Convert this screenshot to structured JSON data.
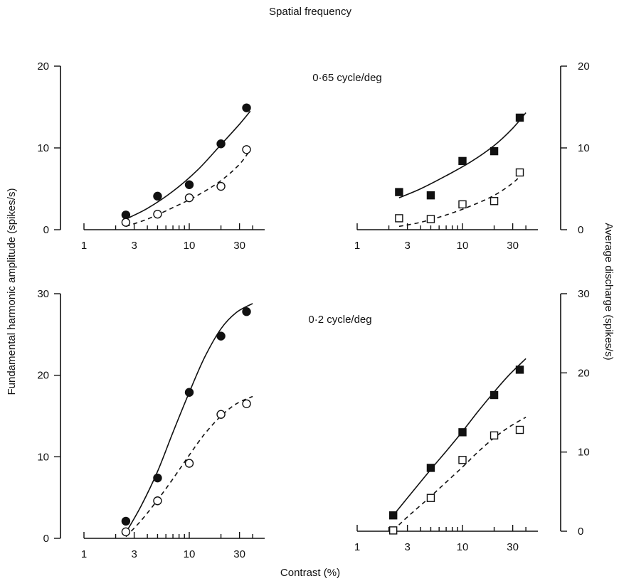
{
  "figure": {
    "top_title": "Spatial frequency",
    "y_left_label": "Fundamental harmonic amplitude (spikes/s)",
    "y_right_label": "Average discharge (spikes/s)",
    "x_label": "Contrast (%)"
  },
  "chart_data": [
    {
      "type": "scatter",
      "panel": "top-left",
      "title": "0·65 cycle/deg",
      "xlabel": "Contrast (%)",
      "ylabel": "Fundamental harmonic amplitude (spikes/s)",
      "xscale": "log",
      "xlim": [
        1,
        45
      ],
      "ylim": [
        0,
        20
      ],
      "x_ticks": [
        1,
        3,
        10,
        30
      ],
      "y_ticks": [
        0,
        10,
        20
      ],
      "series": [
        {
          "marker": "filled-circle",
          "line": "solid",
          "x": [
            2.5,
            5,
            10,
            20,
            35
          ],
          "y": [
            1.8,
            4.1,
            5.5,
            10.5,
            14.9
          ],
          "fit": {
            "x": [
              2.5,
              4,
              7,
              12,
              20,
              30,
              38
            ],
            "y": [
              1.3,
              2.6,
              4.7,
              7.3,
              10.4,
              12.9,
              14.5
            ]
          }
        },
        {
          "marker": "open-circle",
          "line": "dashed",
          "x": [
            2.5,
            5,
            10,
            20,
            35
          ],
          "y": [
            0.9,
            1.9,
            3.9,
            5.3,
            9.8
          ],
          "fit": {
            "x": [
              2.5,
              4,
              7,
              12,
              20,
              30,
              38
            ],
            "y": [
              0.4,
              1.3,
              2.7,
              4.2,
              6.0,
              8.0,
              9.8
            ]
          }
        }
      ]
    },
    {
      "type": "scatter",
      "panel": "top-right",
      "title": "",
      "xlabel": "Contrast (%)",
      "ylabel": "Average discharge (spikes/s)",
      "xscale": "log",
      "xlim": [
        1,
        45
      ],
      "ylim": [
        0,
        20
      ],
      "x_ticks": [
        1,
        3,
        10,
        30
      ],
      "y_ticks": [
        0,
        10,
        20
      ],
      "series": [
        {
          "marker": "filled-square",
          "line": "solid",
          "x": [
            2.5,
            5,
            10,
            20,
            35
          ],
          "y": [
            4.6,
            4.2,
            8.4,
            9.6,
            13.7
          ],
          "fit": {
            "x": [
              2.5,
              4,
              7,
              12,
              20,
              30,
              40
            ],
            "y": [
              3.9,
              5.0,
              6.6,
              8.3,
              10.3,
              12.4,
              14.3
            ]
          }
        },
        {
          "marker": "open-square",
          "line": "dashed",
          "x": [
            2.5,
            5,
            10,
            20,
            35
          ],
          "y": [
            1.4,
            1.3,
            3.1,
            3.5,
            7.0
          ],
          "fit": {
            "x": [
              2.5,
              4,
              7,
              12,
              20,
              30,
              38
            ],
            "y": [
              0.4,
              0.9,
              1.8,
              2.9,
              4.2,
              5.7,
              7.0
            ]
          }
        }
      ]
    },
    {
      "type": "scatter",
      "panel": "bottom-left",
      "title": "0·2 cycle/deg",
      "xlabel": "Contrast (%)",
      "ylabel": "Fundamental harmonic amplitude (spikes/s)",
      "xscale": "log",
      "xlim": [
        1,
        45
      ],
      "ylim": [
        0,
        30
      ],
      "x_ticks": [
        1,
        3,
        10,
        30
      ],
      "y_ticks": [
        0,
        10,
        20,
        30
      ],
      "series": [
        {
          "marker": "filled-circle",
          "line": "solid",
          "x": [
            2.5,
            5,
            10,
            20,
            35
          ],
          "y": [
            2.1,
            7.4,
            17.9,
            24.8,
            27.8
          ],
          "fit": {
            "x": [
              2.5,
              3.5,
              5,
              7,
              10,
              14,
              20,
              28,
              40
            ],
            "y": [
              0.7,
              4.0,
              8.2,
              13.0,
              17.9,
              22.2,
              25.7,
              27.7,
              28.8
            ]
          }
        },
        {
          "marker": "open-circle",
          "line": "dashed",
          "x": [
            2.5,
            5,
            10,
            20,
            35
          ],
          "y": [
            0.8,
            4.6,
            9.2,
            15.2,
            16.5
          ],
          "fit": {
            "x": [
              2.5,
              3.5,
              5,
              7,
              10,
              14,
              20,
              28,
              40
            ],
            "y": [
              0.2,
              2.2,
              4.7,
              7.3,
              10.2,
              12.8,
              15.0,
              16.5,
              17.4
            ]
          }
        }
      ]
    },
    {
      "type": "scatter",
      "panel": "bottom-right",
      "title": "",
      "xlabel": "Contrast (%)",
      "ylabel": "Average discharge (spikes/s)",
      "xscale": "log",
      "xlim": [
        1,
        45
      ],
      "ylim": [
        0,
        30
      ],
      "x_ticks": [
        1,
        3,
        10,
        30
      ],
      "y_ticks": [
        0,
        10,
        20,
        30
      ],
      "series": [
        {
          "marker": "filled-square",
          "line": "solid",
          "x": [
            2.2,
            5,
            10,
            20,
            35
          ],
          "y": [
            2.0,
            8.0,
            12.5,
            17.2,
            20.4
          ],
          "fit": {
            "x": [
              2.2,
              3,
              5,
              7,
              10,
              14,
              20,
              28,
              40
            ],
            "y": [
              2.0,
              4.2,
              7.8,
              10.1,
              12.6,
              15.1,
              17.6,
              19.8,
              21.8
            ]
          }
        },
        {
          "marker": "open-square",
          "line": "dashed",
          "x": [
            2.2,
            5,
            10,
            20,
            35
          ],
          "y": [
            0.1,
            4.2,
            9.0,
            12.1,
            12.8
          ],
          "fit": {
            "x": [
              2.2,
              3,
              5,
              7,
              10,
              14,
              20,
              28,
              40
            ],
            "y": [
              0.1,
              1.8,
              4.4,
              6.2,
              8.1,
              10.0,
              11.8,
              13.2,
              14.4
            ]
          }
        }
      ]
    }
  ]
}
